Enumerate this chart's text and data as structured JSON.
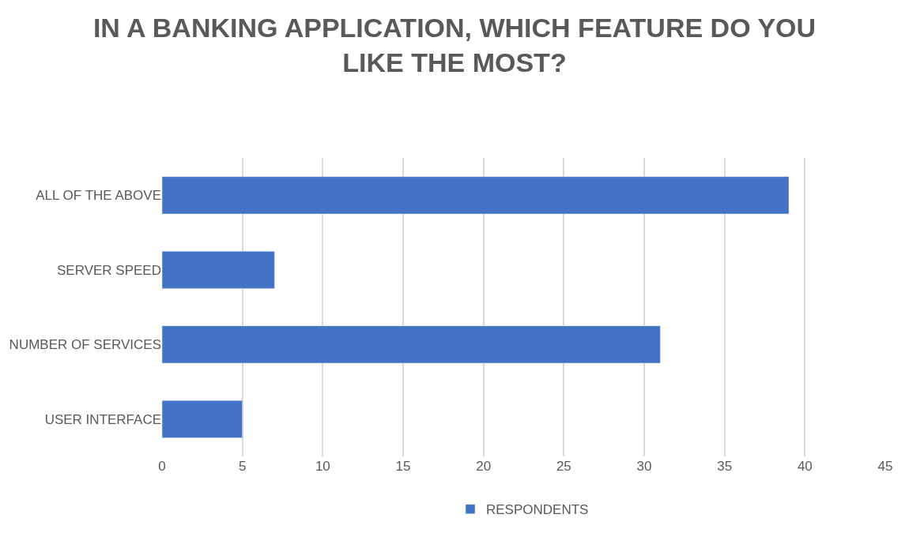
{
  "chart_data": {
    "type": "bar",
    "orientation": "horizontal",
    "title": "IN A BANKING APPLICATION, WHICH FEATURE DO YOU LIKE THE MOST?",
    "categories": [
      "ALL OF THE ABOVE",
      "SERVER SPEED",
      "NUMBER OF SERVICES",
      "USER INTERFACE"
    ],
    "series": [
      {
        "name": "RESPONDENTS",
        "color": "#4472c4",
        "values": [
          39,
          7,
          31,
          5
        ]
      }
    ],
    "xlim": [
      0,
      45
    ],
    "xticks": [
      0,
      5,
      10,
      15,
      20,
      25,
      30,
      35,
      40,
      45
    ],
    "grid": "x",
    "legend": "bottom"
  }
}
